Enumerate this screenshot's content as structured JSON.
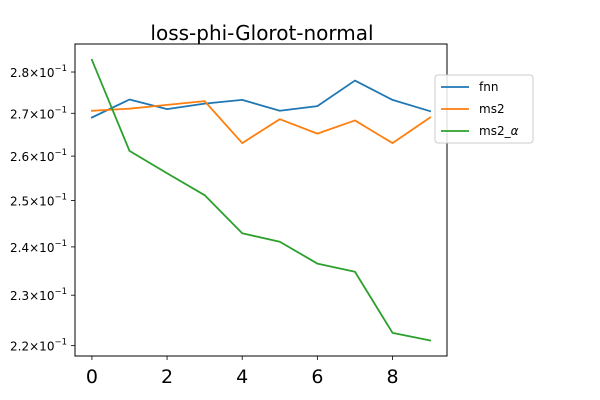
{
  "chart_data": {
    "type": "line",
    "title": "loss-phi-Glorot-normal",
    "xlabel": "",
    "ylabel": "",
    "yscale": "log",
    "grid": false,
    "legend_position": "right, upper, outside plot",
    "x": [
      0,
      1,
      2,
      3,
      4,
      5,
      6,
      7,
      8,
      9
    ],
    "xlim": [
      -0.45,
      9.45
    ],
    "ylim": [
      0.218,
      0.287
    ],
    "x_ticks": [
      0,
      2,
      4,
      6,
      8
    ],
    "y_ticks": [
      {
        "value": 0.22,
        "mantissa": "2.2",
        "times": "×",
        "exp_base": "10",
        "exp": "−1"
      },
      {
        "value": 0.23,
        "mantissa": "2.3",
        "times": "×",
        "exp_base": "10",
        "exp": "−1"
      },
      {
        "value": 0.24,
        "mantissa": "2.4",
        "times": "×",
        "exp_base": "10",
        "exp": "−1"
      },
      {
        "value": 0.25,
        "mantissa": "2.5",
        "times": "×",
        "exp_base": "10",
        "exp": "−1"
      },
      {
        "value": 0.26,
        "mantissa": "2.6",
        "times": "×",
        "exp_base": "10",
        "exp": "−1"
      },
      {
        "value": 0.27,
        "mantissa": "2.7",
        "times": "×",
        "exp_base": "10",
        "exp": "−1"
      },
      {
        "value": 0.28,
        "mantissa": "2.8",
        "times": "×",
        "exp_base": "10",
        "exp": "−1"
      }
    ],
    "series": [
      {
        "name": "fnn",
        "name_main": "fnn",
        "name_sub": "",
        "color": "#1f77b4",
        "values": [
          0.269,
          0.2733,
          0.271,
          0.2723,
          0.2732,
          0.2706,
          0.2717,
          0.2779,
          0.2732,
          0.2705
        ]
      },
      {
        "name": "ms2",
        "name_main": "ms2",
        "name_sub": "",
        "color": "#ff7f0e",
        "values": [
          0.2706,
          0.2711,
          0.272,
          0.2729,
          0.263,
          0.2686,
          0.2652,
          0.2683,
          0.263,
          0.269
        ]
      },
      {
        "name": "ms2_α",
        "name_main": "ms2_",
        "name_sub": "α",
        "color": "#2ca02c",
        "values": [
          0.283,
          0.2612,
          0.2561,
          0.2512,
          0.2429,
          0.2411,
          0.2365,
          0.2348,
          0.2225,
          0.221
        ]
      }
    ]
  }
}
